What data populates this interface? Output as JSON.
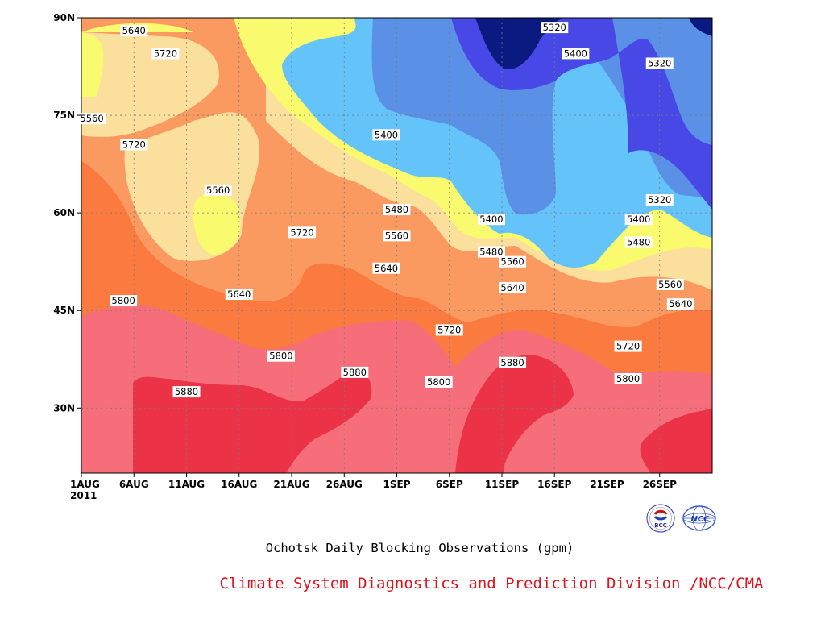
{
  "chart_data": {
    "type": "heatmap",
    "subtype": "filled-contour",
    "title": "Ochotsk Daily Blocking Observations (gpm)",
    "credit": "Climate System Diagnostics and Prediction Division /NCC/CMA",
    "year_label": "2011",
    "x_tick_labels": [
      "1AUG",
      "6AUG",
      "11AUG",
      "16AUG",
      "21AUG",
      "26AUG",
      "1SEP",
      "6SEP",
      "11SEP",
      "16SEP",
      "21SEP",
      "26SEP"
    ],
    "x_range": [
      "2011-08-01",
      "2011-09-30"
    ],
    "y_tick_labels": [
      "90N",
      "75N",
      "60N",
      "45N",
      "30N"
    ],
    "y_range": [
      20,
      90
    ],
    "grid": true,
    "contour_levels": [
      5320,
      5400,
      5480,
      5560,
      5640,
      5720,
      5800,
      5880
    ],
    "band_colors": {
      "below_5320": "#0a1a80",
      "5320_5400": "#4848e6",
      "5400_5480": "#5a90e6",
      "5480_5560": "#64c4fa",
      "5560_5640": "#fafa6e",
      "5640_5720": "#fae09c",
      "5720_5800": "#fa9a60",
      "5800_5880": "#fa7a40",
      "5880_5960": "#f56e7a",
      "above_5960": "#eb3246"
    },
    "contour_line_labels": [
      {
        "day": "2011-08-06",
        "lat": 88.0,
        "value": "5640"
      },
      {
        "day": "2011-08-09",
        "lat": 84.5,
        "value": "5720"
      },
      {
        "day": "2011-08-02",
        "lat": 74.5,
        "value": "5560"
      },
      {
        "day": "2011-08-06",
        "lat": 70.5,
        "value": "5720"
      },
      {
        "day": "2011-08-14",
        "lat": 63.5,
        "value": "5560"
      },
      {
        "day": "2011-08-16",
        "lat": 47.5,
        "value": "5640"
      },
      {
        "day": "2011-08-05",
        "lat": 46.5,
        "value": "5800"
      },
      {
        "day": "2011-08-11",
        "lat": 32.5,
        "value": "5880"
      },
      {
        "day": "2011-08-20",
        "lat": 38.0,
        "value": "5800"
      },
      {
        "day": "2011-08-22",
        "lat": 57.0,
        "value": "5720"
      },
      {
        "day": "2011-08-27",
        "lat": 35.5,
        "value": "5880"
      },
      {
        "day": "2011-08-30",
        "lat": 72.0,
        "value": "5400"
      },
      {
        "day": "2011-08-31",
        "lat": 60.5,
        "value": "5480"
      },
      {
        "day": "2011-08-31",
        "lat": 56.5,
        "value": "5560"
      },
      {
        "day": "2011-08-30",
        "lat": 51.5,
        "value": "5640"
      },
      {
        "day": "2011-09-04",
        "lat": 34.0,
        "value": "5800"
      },
      {
        "day": "2011-09-05",
        "lat": 42.0,
        "value": "5720"
      },
      {
        "day": "2011-09-09",
        "lat": 59.0,
        "value": "5400"
      },
      {
        "day": "2011-09-09",
        "lat": 54.0,
        "value": "5480"
      },
      {
        "day": "2011-09-11",
        "lat": 52.5,
        "value": "5560"
      },
      {
        "day": "2011-09-11",
        "lat": 48.5,
        "value": "5640"
      },
      {
        "day": "2011-09-11",
        "lat": 37.0,
        "value": "5880"
      },
      {
        "day": "2011-09-15",
        "lat": 88.5,
        "value": "5320"
      },
      {
        "day": "2011-09-17",
        "lat": 84.5,
        "value": "5400"
      },
      {
        "day": "2011-09-25",
        "lat": 83.0,
        "value": "5320"
      },
      {
        "day": "2011-09-25",
        "lat": 62.0,
        "value": "5320"
      },
      {
        "day": "2011-09-23",
        "lat": 59.0,
        "value": "5400"
      },
      {
        "day": "2011-09-23",
        "lat": 55.5,
        "value": "5480"
      },
      {
        "day": "2011-09-26",
        "lat": 49.0,
        "value": "5560"
      },
      {
        "day": "2011-09-27",
        "lat": 46.0,
        "value": "5640"
      },
      {
        "day": "2011-09-22",
        "lat": 39.5,
        "value": "5720"
      },
      {
        "day": "2011-09-22",
        "lat": 34.5,
        "value": "5800"
      }
    ]
  },
  "logos": {
    "left": {
      "name": "bcc-logo",
      "text": "BCC"
    },
    "right": {
      "name": "ncc-logo",
      "text": "NCC"
    }
  }
}
